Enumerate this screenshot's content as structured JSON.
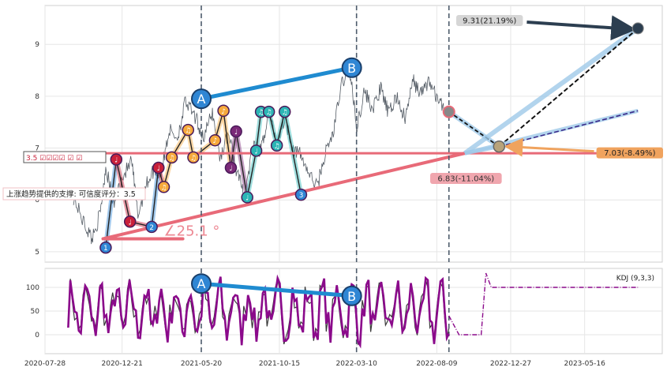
{
  "colors": {
    "background": "#ffffff",
    "panel_border": "#cfcfcf",
    "grid": "#e6e6e6",
    "price_line": "#555d66",
    "support_line": "#e86a78",
    "blue_channel": "#1f8bd0",
    "vline": "#4d5b6b",
    "forecast_dark": "#2c3e50",
    "forecast_light": "#9fc9e8",
    "kdj_line": "#8b0a8b",
    "kdj_shadow": "#3a3a3a",
    "label_up": "#2c3e50",
    "label_orange": "#f0a35e",
    "label_pink": "#e86a78",
    "bubble_blue": "#2f86d4",
    "bubble_red": "#c9203a",
    "bubble_orange": "#f6a93b",
    "bubble_teal": "#2bb5b5",
    "bubble_purple": "#7b2a78"
  },
  "chart_data": [
    {
      "type": "line",
      "panel": "price",
      "x_range": [
        "2020-07-28",
        "2023-10-10"
      ],
      "ylim": [
        4.8,
        9.75
      ],
      "y_ticks": [
        5,
        6,
        7,
        8,
        9
      ],
      "grid": true,
      "series": [
        {
          "points": [
            [
              "2020-09-20",
              6.05
            ],
            [
              "2020-10-10",
              5.55
            ],
            [
              "2020-10-25",
              5.25
            ],
            [
              "2020-11-10",
              5.75
            ],
            [
              "2020-11-20",
              6.65
            ],
            [
              "2020-12-05",
              5.9
            ],
            [
              "2020-12-20",
              6.4
            ],
            [
              "2021-01-08",
              6.75
            ],
            [
              "2021-01-20",
              5.7
            ],
            [
              "2021-02-05",
              6.3
            ],
            [
              "2021-02-20",
              6.6
            ],
            [
              "2021-03-05",
              6.5
            ],
            [
              "2021-03-20",
              7.35
            ],
            [
              "2021-04-05",
              7.2
            ],
            [
              "2021-04-20",
              7.9
            ],
            [
              "2021-05-10",
              7.55
            ],
            [
              "2021-05-25",
              7.2
            ],
            [
              "2021-06-10",
              7.7
            ],
            [
              "2021-06-25",
              6.8
            ],
            [
              "2021-07-10",
              7.3
            ],
            [
              "2021-07-25",
              6.6
            ],
            [
              "2021-08-10",
              6.05
            ],
            [
              "2021-08-25",
              7.0
            ],
            [
              "2021-09-10",
              6.95
            ],
            [
              "2021-09-25",
              7.7
            ],
            [
              "2021-10-10",
              7.1
            ],
            [
              "2021-10-25",
              7.6
            ],
            [
              "2021-11-10",
              7.0
            ],
            [
              "2021-11-25",
              6.85
            ],
            [
              "2021-12-10",
              6.5
            ],
            [
              "2021-12-25",
              6.25
            ],
            [
              "2022-01-10",
              6.9
            ],
            [
              "2022-01-25",
              7.3
            ],
            [
              "2022-02-10",
              8.25
            ],
            [
              "2022-02-25",
              8.55
            ],
            [
              "2022-03-10",
              7.4
            ],
            [
              "2022-03-25",
              8.1
            ],
            [
              "2022-04-10",
              7.75
            ],
            [
              "2022-04-25",
              8.15
            ],
            [
              "2022-05-10",
              7.65
            ],
            [
              "2022-05-25",
              8.0
            ],
            [
              "2022-06-10",
              7.55
            ],
            [
              "2022-06-25",
              8.3
            ],
            [
              "2022-07-10",
              8.05
            ],
            [
              "2022-07-25",
              8.3
            ],
            [
              "2022-08-10",
              7.95
            ],
            [
              "2022-08-25",
              7.7
            ]
          ]
        }
      ],
      "support_level": {
        "value": 6.9
      },
      "support_trendline": {
        "from": [
          "2020-11-15",
          5.25
        ],
        "to": [
          "2022-10-01",
          6.9
        ]
      },
      "angle_label": "∠25.1 °",
      "channel_line": {
        "label_a": "A",
        "label_b": "B",
        "from": [
          "2021-05-20",
          7.95
        ],
        "to": [
          "2022-03-01",
          8.55
        ]
      },
      "vlines": [
        "2021-05-20",
        "2022-03-10",
        "2022-09-01"
      ],
      "forecast": {
        "start": [
          "2022-09-01",
          7.7
        ],
        "pivot": [
          "2022-12-05",
          7.03
        ],
        "targets": [
          {
            "label": "9.31(21.19%)",
            "to": [
              "2023-08-25",
              9.31
            ],
            "style": "dark"
          },
          {
            "label": "7.03(-8.49%)",
            "to": [
              "2023-08-25",
              7.03
            ],
            "style": "orange"
          },
          {
            "label": "",
            "to": [
              "2023-08-25",
              7.72
            ],
            "style": "light"
          }
        ],
        "support_label": "6.83(-11.04%)"
      },
      "pattern_markers": [
        {
          "date": "2020-11-20",
          "price": 5.08,
          "label": "1",
          "color": "blue"
        },
        {
          "date": "2021-02-15",
          "price": 5.48,
          "label": "2",
          "color": "blue"
        },
        {
          "date": "2021-11-25",
          "price": 6.1,
          "label": "3",
          "color": "blue"
        },
        {
          "date": "2020-12-10",
          "price": 6.78,
          "label": "♩",
          "color": "red"
        },
        {
          "date": "2021-01-05",
          "price": 5.58,
          "label": "♩",
          "color": "red"
        },
        {
          "date": "2021-02-28",
          "price": 6.62,
          "label": "♩",
          "color": "red"
        },
        {
          "date": "2021-03-10",
          "price": 6.25,
          "label": "♫",
          "color": "orange"
        },
        {
          "date": "2021-03-25",
          "price": 6.82,
          "label": "♫",
          "color": "orange"
        },
        {
          "date": "2021-04-25",
          "price": 7.35,
          "label": "♫",
          "color": "orange"
        },
        {
          "date": "2021-05-05",
          "price": 6.82,
          "label": "♫",
          "color": "orange"
        },
        {
          "date": "2021-06-15",
          "price": 7.15,
          "label": "♪",
          "color": "orange"
        },
        {
          "date": "2021-07-01",
          "price": 7.72,
          "label": "♪",
          "color": "orange"
        },
        {
          "date": "2021-07-15",
          "price": 6.62,
          "label": "♩",
          "color": "purple"
        },
        {
          "date": "2021-07-25",
          "price": 7.32,
          "label": "♩",
          "color": "purple"
        },
        {
          "date": "2021-08-15",
          "price": 6.05,
          "label": "♩",
          "color": "teal"
        },
        {
          "date": "2021-09-01",
          "price": 6.95,
          "label": "♩",
          "color": "teal"
        },
        {
          "date": "2021-09-10",
          "price": 7.7,
          "label": "♫",
          "color": "teal"
        },
        {
          "date": "2021-09-25",
          "price": 7.7,
          "label": "♫",
          "color": "teal"
        },
        {
          "date": "2021-10-10",
          "price": 7.05,
          "label": "♫",
          "color": "teal"
        },
        {
          "date": "2021-10-25",
          "price": 7.7,
          "label": "♫",
          "color": "teal"
        }
      ],
      "annotation_boxes": [
        {
          "text": "3.5 ☑☑☑☑ ☑ ☑"
        },
        {
          "text": "上涨趋势提供的支撑: 可信度评分：3.5"
        }
      ]
    },
    {
      "type": "line",
      "panel": "indicator",
      "legend": "KDJ (9,3,3)",
      "legend_position": "top-right",
      "x_range": [
        "2020-07-28",
        "2023-10-10"
      ],
      "ylim": [
        -40,
        140
      ],
      "y_ticks": [
        0,
        50,
        100
      ],
      "x_ticks": [
        "2020-07-28",
        "2020-12-21",
        "2021-05-20",
        "2021-10-15",
        "2022-03-10",
        "2022-08-09",
        "2022-12-27",
        "2023-05-16"
      ],
      "grid": true,
      "channel_line": {
        "label_a": "A",
        "label_b": "B",
        "from": [
          "2021-05-20",
          108
        ],
        "to": [
          "2022-03-01",
          82
        ]
      },
      "projection": [
        [
          "2022-09-01",
          40
        ],
        [
          "2022-09-20",
          0
        ],
        [
          "2022-11-01",
          0
        ],
        [
          "2022-11-10",
          130
        ],
        [
          "2022-11-20",
          100
        ],
        [
          "2023-08-25",
          100
        ]
      ]
    }
  ]
}
